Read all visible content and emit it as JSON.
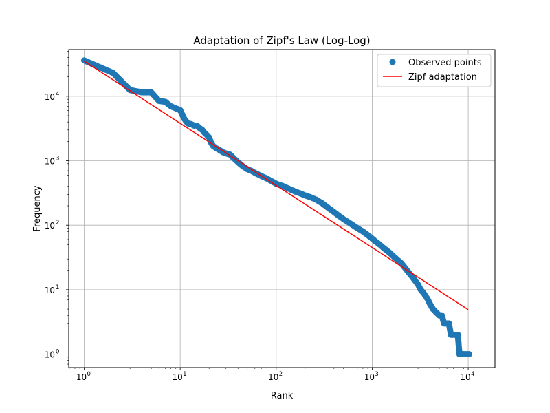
{
  "chart_data": {
    "type": "scatter",
    "title": "Adaptation of Zipf's Law (Log-Log)",
    "xlabel": "Rank",
    "ylabel": "Frequency",
    "xscale": "log",
    "yscale": "log",
    "xlim": [
      0.69,
      19000
    ],
    "ylim": [
      0.62,
      53000
    ],
    "grid": true,
    "legend_position": "top-right",
    "x_ticks": [
      {
        "value": 1,
        "base": "10",
        "exp": "0"
      },
      {
        "value": 10,
        "base": "10",
        "exp": "1"
      },
      {
        "value": 100,
        "base": "10",
        "exp": "2"
      },
      {
        "value": 1000,
        "base": "10",
        "exp": "3"
      },
      {
        "value": 10000,
        "base": "10",
        "exp": "4"
      }
    ],
    "y_ticks": [
      {
        "value": 1,
        "base": "10",
        "exp": "0"
      },
      {
        "value": 10,
        "base": "10",
        "exp": "1"
      },
      {
        "value": 100,
        "base": "10",
        "exp": "2"
      },
      {
        "value": 1000,
        "base": "10",
        "exp": "3"
      },
      {
        "value": 10000,
        "base": "10",
        "exp": "4"
      }
    ],
    "series": [
      {
        "name": "Observed points",
        "kind": "scatter",
        "color": "#1f77b4",
        "x": [
          1,
          2,
          3,
          4,
          5,
          6,
          7,
          8,
          9,
          10,
          11,
          12,
          13,
          14,
          15,
          16,
          17,
          18,
          19,
          20,
          21,
          22,
          24,
          26,
          28,
          30,
          33,
          36,
          40,
          45,
          50,
          55,
          60,
          70,
          80,
          90,
          100,
          120,
          140,
          160,
          180,
          200,
          230,
          260,
          300,
          350,
          400,
          450,
          500,
          600,
          700,
          800,
          900,
          1000,
          1100,
          1200,
          1300,
          1500,
          1700,
          2000,
          2300,
          2600,
          3000,
          3200,
          3400,
          3600,
          3800,
          4000,
          4300,
          4600,
          5000,
          5300,
          5600,
          5800,
          6000,
          6300,
          6600,
          6900,
          7200,
          7500,
          7800,
          8100,
          8400,
          8700,
          9000,
          9400,
          9800,
          10200
        ],
        "y": [
          36000,
          23000,
          12500,
          11500,
          11500,
          8500,
          8200,
          7000,
          6500,
          6100,
          4500,
          3800,
          3700,
          3500,
          3500,
          3200,
          3000,
          2700,
          2500,
          2300,
          1900,
          1700,
          1550,
          1450,
          1350,
          1300,
          1250,
          1100,
          950,
          820,
          740,
          700,
          650,
          580,
          530,
          480,
          440,
          400,
          360,
          330,
          310,
          290,
          270,
          250,
          220,
          185,
          160,
          140,
          125,
          105,
          90,
          80,
          70,
          62,
          55,
          50,
          45,
          38,
          32,
          26,
          20,
          16,
          12,
          10,
          9,
          8,
          7,
          6,
          5,
          4.5,
          4,
          4,
          3,
          3,
          3,
          3,
          2,
          2,
          2,
          2,
          2,
          1,
          1,
          1,
          1,
          1,
          1,
          1
        ]
      },
      {
        "name": "Zipf adaptation",
        "kind": "line",
        "color": "#ff0000",
        "x": [
          1,
          10000
        ],
        "y": [
          35000,
          4.9
        ]
      }
    ]
  }
}
